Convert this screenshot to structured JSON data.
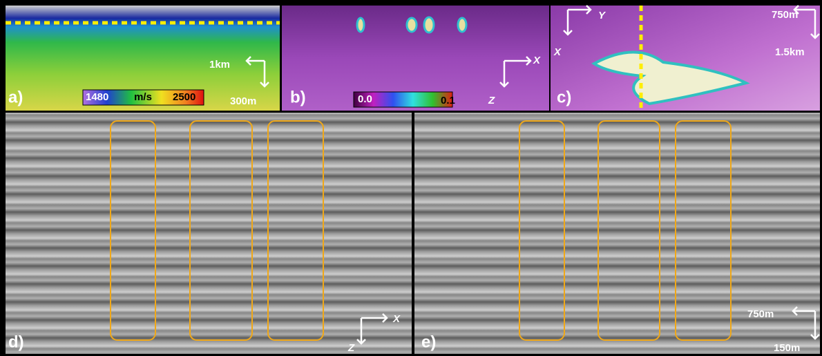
{
  "panels": [
    {
      "label": "a)",
      "colorbar": {
        "min": "1480",
        "unit": "m/s",
        "max": "2500"
      },
      "scale": {
        "horizontal": "1km",
        "vertical": "300m"
      }
    },
    {
      "label": "b)",
      "colorbar": {
        "min": "0.0",
        "max": "0.1"
      },
      "axes": {
        "x": "X",
        "z": "Z"
      }
    },
    {
      "label": "c)",
      "axes": {
        "y": "Y",
        "x": "X"
      },
      "scale": {
        "horizontal": "750m",
        "vertical": "1.5km"
      }
    },
    {
      "label": "d)",
      "axes": {
        "x": "X",
        "z": "Z"
      }
    },
    {
      "label": "e)",
      "scale": {
        "horizontal": "750m",
        "vertical": "150m"
      }
    }
  ]
}
